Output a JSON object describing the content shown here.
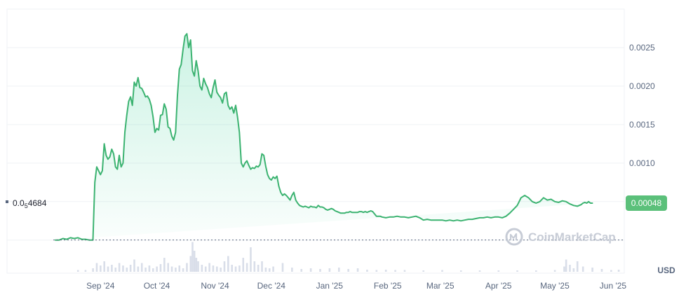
{
  "chart_data": {
    "type": "area",
    "currency": "USD",
    "y_ticks": [
      "0.0025",
      "0.0020",
      "0.0015",
      "0.0010"
    ],
    "y_tick_values": [
      0.0025,
      0.002,
      0.0015,
      0.001
    ],
    "ylim": [
      -0.00043,
      0.003
    ],
    "x_ticks": [
      "Sep '24",
      "Oct '24",
      "Nov '24",
      "Dec '24",
      "Jan '25",
      "Feb '25",
      "Mar '25",
      "Apr '25",
      "May '25",
      "Jun '25"
    ],
    "x_tick_days": [
      8,
      38,
      69,
      99,
      130,
      161,
      189,
      220,
      250,
      281
    ],
    "xlim_days": [
      -16,
      287
    ],
    "baseline_label_prefix": "0.0",
    "baseline_label_sub": "5",
    "baseline_label_suffix": "4684",
    "baseline_value": 4.684e-07,
    "current_price_label": "0.00048",
    "current_price_value": 0.00048,
    "price_series_day": [
      -16,
      -14,
      -12,
      -10,
      -8,
      -6,
      -4,
      -2,
      0,
      2,
      4,
      4.5,
      5,
      6,
      7,
      8,
      9,
      10,
      11,
      12,
      13,
      14,
      15,
      16,
      17,
      18,
      19,
      20,
      21,
      22,
      23,
      24,
      25,
      26,
      27,
      28,
      29,
      30,
      31,
      32,
      33,
      34,
      35,
      36,
      37,
      38,
      39,
      40,
      41,
      42,
      43,
      44,
      45,
      46,
      47,
      48,
      49,
      50,
      51,
      52,
      53,
      54,
      55,
      56,
      57,
      58,
      59,
      60,
      61,
      62,
      63,
      64,
      65,
      66,
      67,
      68,
      69,
      70,
      71,
      72,
      73,
      74,
      75,
      76,
      77,
      78,
      79,
      80,
      81,
      82,
      83,
      84,
      85,
      86,
      87,
      88,
      89,
      90,
      91,
      92,
      93,
      94,
      95,
      96,
      97,
      98,
      99,
      100,
      101,
      102,
      103,
      104,
      105,
      106,
      107,
      108,
      109,
      110,
      111,
      112,
      113,
      114,
      115,
      116,
      117,
      118,
      119,
      120,
      121,
      122,
      123,
      124,
      125,
      126,
      127,
      128,
      129,
      130,
      131,
      132,
      133,
      134,
      135,
      136,
      137,
      138,
      139,
      140,
      141,
      142,
      143,
      144,
      145,
      146,
      147,
      148,
      149,
      150,
      151,
      152,
      153,
      154,
      155,
      156,
      157,
      158,
      160,
      162,
      164,
      166,
      168,
      170,
      172,
      174,
      176,
      178,
      180,
      182,
      184,
      186,
      188,
      190,
      192,
      194,
      196,
      198,
      200,
      202,
      204,
      206,
      208,
      210,
      212,
      214,
      216,
      218,
      220,
      222,
      224,
      226,
      228,
      230,
      232,
      234,
      236,
      238,
      240,
      242,
      244,
      246,
      248,
      250,
      252,
      254,
      256,
      258,
      260,
      262,
      264,
      265,
      266,
      267,
      268,
      269,
      270,
      271,
      272,
      273,
      274,
      275,
      276,
      277,
      278,
      279,
      280,
      281,
      282,
      283,
      284,
      285,
      286,
      287
    ],
    "price_series_value": [
      0.0,
      0.0,
      2e-05,
      1e-05,
      3e-05,
      2e-05,
      3e-05,
      1e-05,
      1e-05,
      0.0,
      0.0,
      0.0004,
      0.00075,
      0.00095,
      0.0009,
      0.00085,
      0.0009,
      0.00125,
      0.0011,
      0.00105,
      0.00108,
      0.00118,
      0.00112,
      0.00095,
      0.00092,
      0.0011,
      0.00095,
      0.001,
      0.0014,
      0.00162,
      0.0018,
      0.00186,
      0.00175,
      0.00205,
      0.002,
      0.00211,
      0.00198,
      0.00197,
      0.00192,
      0.00186,
      0.00187,
      0.00183,
      0.00175,
      0.0016,
      0.0014,
      0.00145,
      0.00143,
      0.00162,
      0.00163,
      0.00177,
      0.0017,
      0.00147,
      0.00145,
      0.00135,
      0.0013,
      0.0014,
      0.00188,
      0.00222,
      0.00228,
      0.00248,
      0.00265,
      0.00268,
      0.0025,
      0.0026,
      0.0022,
      0.00213,
      0.00233,
      0.0022,
      0.002,
      0.00195,
      0.0021,
      0.00203,
      0.00198,
      0.0019,
      0.00185,
      0.00198,
      0.00208,
      0.00192,
      0.00188,
      0.00185,
      0.00178,
      0.0019,
      0.00192,
      0.00175,
      0.0017,
      0.00173,
      0.00165,
      0.00175,
      0.0016,
      0.0014,
      0.001,
      0.00095,
      0.001,
      0.00103,
      0.00097,
      0.00092,
      0.00094,
      0.00093,
      0.00096,
      0.00095,
      0.00098,
      0.00112,
      0.0011,
      0.00096,
      0.00085,
      0.0008,
      0.00078,
      0.00082,
      0.0008,
      0.00083,
      0.0007,
      0.00062,
      0.00058,
      0.0006,
      0.00058,
      0.00055,
      0.00052,
      0.00058,
      0.00062,
      0.00052,
      0.00048,
      0.00045,
      0.00044,
      0.00043,
      0.00044,
      0.00043,
      0.00042,
      0.00044,
      0.00043,
      0.00043,
      0.00042,
      0.00045,
      0.00043,
      0.00043,
      0.00042,
      0.0004,
      0.00039,
      0.0004,
      0.00041,
      0.0004,
      0.00038,
      0.00037,
      0.00036,
      0.00035,
      0.00035,
      0.00035,
      0.00036,
      0.00036,
      0.00037,
      0.00036,
      0.00036,
      0.00036,
      0.00036,
      0.00037,
      0.00037,
      0.00036,
      0.00037,
      0.00036,
      0.00037,
      0.00038,
      0.00037,
      0.00034,
      0.00031,
      0.00031,
      0.00031,
      0.0003,
      0.00029,
      0.0003,
      0.0003,
      0.00031,
      0.0003,
      0.0003,
      0.00029,
      0.0003,
      0.00031,
      0.00029,
      0.00026,
      0.00027,
      0.00026,
      0.00026,
      0.00026,
      0.00026,
      0.00025,
      0.00026,
      0.00025,
      0.00026,
      0.00025,
      0.00026,
      0.00027,
      0.00027,
      0.00028,
      0.00029,
      0.00029,
      0.0003,
      0.00029,
      0.0003,
      0.0003,
      0.00029,
      0.00031,
      0.00035,
      0.0004,
      0.00045,
      0.00055,
      0.00058,
      0.00055,
      0.0005,
      0.00048,
      0.0005,
      0.00055,
      0.00052,
      0.00053,
      0.0005,
      0.00049,
      0.00051,
      0.0005,
      0.00047,
      0.00045,
      0.00044,
      0.00046,
      0.00048,
      0.00049,
      0.00048,
      0.0005,
      0.00048,
      0.00048
    ],
    "volume_series_day": [
      -4,
      0,
      4,
      6,
      8,
      10,
      12,
      14,
      16,
      18,
      20,
      22,
      24,
      26,
      28,
      30,
      32,
      34,
      36,
      38,
      40,
      42,
      44,
      46,
      48,
      50,
      52,
      54,
      56,
      57,
      58,
      59,
      60,
      62,
      64,
      66,
      68,
      70,
      72,
      74,
      76,
      78,
      80,
      82,
      84,
      86,
      88,
      90,
      92,
      94,
      96,
      98,
      100,
      105,
      110,
      115,
      120,
      125,
      130,
      135,
      140,
      145,
      150,
      155,
      160,
      165,
      170,
      180,
      190,
      200,
      210,
      220,
      230,
      240,
      250,
      255,
      256,
      258,
      260,
      262,
      265,
      270,
      275,
      280,
      284
    ],
    "volume_series_rel": [
      0.05,
      0.05,
      0.1,
      0.25,
      0.18,
      0.3,
      0.15,
      0.2,
      0.12,
      0.25,
      0.18,
      0.12,
      0.2,
      0.35,
      0.15,
      0.25,
      0.12,
      0.18,
      0.1,
      0.15,
      0.22,
      0.4,
      0.25,
      0.15,
      0.12,
      0.18,
      0.1,
      0.25,
      0.45,
      0.85,
      0.6,
      0.4,
      0.3,
      0.2,
      0.15,
      0.25,
      0.18,
      0.15,
      0.12,
      0.3,
      0.45,
      0.2,
      0.15,
      0.18,
      0.4,
      0.25,
      0.7,
      0.3,
      0.2,
      0.3,
      0.12,
      0.1,
      0.15,
      0.25,
      0.12,
      0.08,
      0.1,
      0.08,
      0.1,
      0.12,
      0.08,
      0.1,
      0.06,
      0.05,
      0.06,
      0.05,
      0.05,
      0.04,
      0.05,
      0.04,
      0.04,
      0.04,
      0.04,
      0.04,
      0.05,
      0.15,
      0.35,
      0.2,
      0.1,
      0.3,
      0.15,
      0.12,
      0.08,
      0.05,
      0.06
    ]
  },
  "watermark": {
    "text": "CoinMarketCap",
    "icon": "coinmarketcap-logo-icon"
  },
  "colors": {
    "line": "#16c784",
    "line_stroke": "#3cb371",
    "badge": "#5bc07a",
    "grid": "#eff2f5",
    "baseline_dash": "#58667e",
    "volume": "#cfd6e4"
  }
}
